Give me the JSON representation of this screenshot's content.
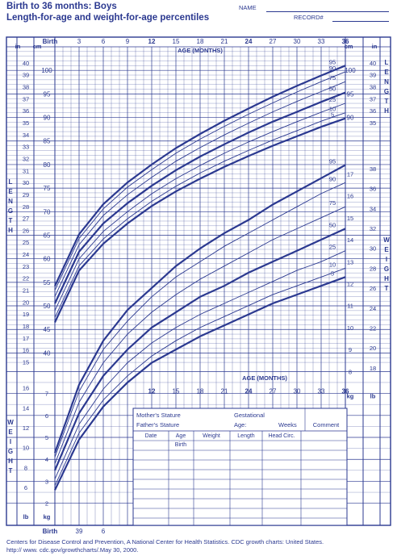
{
  "header": {
    "title_line1": "Birth to 36 months: Boys",
    "title_line2": "Length-for-age and weight-for-age percentiles",
    "name_label": "NAME",
    "record_label": "RECORD#"
  },
  "axes": {
    "top_age_ticks": [
      "Birth",
      "3",
      "6",
      "9",
      "12",
      "15",
      "18",
      "21",
      "24",
      "27",
      "30",
      "33",
      "36"
    ],
    "age_months_label": "AGE (MONTHS)",
    "bottom_age_ticks": [
      "12",
      "15",
      "18",
      "21",
      "24",
      "27",
      "30",
      "33",
      "36"
    ],
    "bottom_left_ticks": [
      "Birth",
      "39",
      "6"
    ],
    "unit_in": "in",
    "unit_cm": "cm",
    "unit_kg": "kg",
    "unit_lb": "lb",
    "side_length_label": "LENGTH",
    "side_weight_label": "WEIGHT"
  },
  "form": {
    "mothers_stature": "Mother's Stature",
    "fathers_stature": "Father's Stature",
    "gestational": "Gestational",
    "age": "Age:",
    "weeks": "Weeks",
    "comment": "Comment",
    "col_date": "Date",
    "col_age": "Age",
    "col_weight": "Weight",
    "col_length": "Length",
    "col_head": "Head",
    "col_circ": "Circ.",
    "birth_row": "Birth"
  },
  "footer": {
    "line1": "Centers for Disease Control and Prevention, A National Center for Health Statistics. CDC growth charts: United States.",
    "line2": "http:// www. cdc.gov/growthcharts/.May 30, 2000."
  },
  "chart_data": [
    {
      "type": "line",
      "title": "Length-for-age",
      "xlabel": "AGE (MONTHS)",
      "ylabel": "LENGTH",
      "xlim": [
        0,
        36
      ],
      "ylim_cm": [
        37.5,
        105
      ],
      "x": [
        0,
        3,
        6,
        9,
        12,
        15,
        18,
        21,
        24,
        27,
        30,
        33,
        36
      ],
      "series": [
        {
          "name": "5",
          "values": [
            46.5,
            57.5,
            63.2,
            67.5,
            71.2,
            74.3,
            77.0,
            79.5,
            81.8,
            84.0,
            86.0,
            88.0,
            89.8
          ]
        },
        {
          "name": "10",
          "values": [
            47.5,
            58.5,
            64.2,
            68.5,
            72.2,
            75.4,
            78.2,
            80.7,
            83.0,
            85.2,
            87.2,
            89.2,
            91.0
          ]
        },
        {
          "name": "25",
          "values": [
            49.0,
            60.0,
            65.8,
            70.0,
            73.8,
            77.0,
            79.8,
            82.4,
            84.8,
            87.0,
            89.1,
            91.1,
            93.0
          ]
        },
        {
          "name": "50",
          "values": [
            50.5,
            61.5,
            67.5,
            71.8,
            75.5,
            78.8,
            81.7,
            84.3,
            86.8,
            89.1,
            91.2,
            93.3,
            95.3
          ]
        },
        {
          "name": "75",
          "values": [
            52.0,
            63.0,
            69.2,
            73.6,
            77.3,
            80.7,
            83.6,
            86.3,
            88.8,
            91.2,
            93.4,
            95.5,
            97.6
          ]
        },
        {
          "name": "90",
          "values": [
            53.3,
            64.3,
            70.6,
            75.2,
            78.9,
            82.4,
            85.4,
            88.1,
            90.7,
            93.1,
            95.4,
            97.6,
            99.7
          ]
        },
        {
          "name": "95",
          "values": [
            54.2,
            65.2,
            71.6,
            76.2,
            80.0,
            83.5,
            86.5,
            89.3,
            91.9,
            94.4,
            96.7,
            98.9,
            101.0
          ]
        }
      ]
    },
    {
      "type": "line",
      "title": "Weight-for-age",
      "xlabel": "AGE (MONTHS)",
      "ylabel": "WEIGHT",
      "xlim": [
        0,
        36
      ],
      "ylim_kg": [
        1.4,
        18.3
      ],
      "x": [
        0,
        3,
        6,
        9,
        12,
        15,
        18,
        21,
        24,
        27,
        30,
        33,
        36
      ],
      "series": [
        {
          "name": "5",
          "values": [
            2.6,
            4.9,
            6.4,
            7.5,
            8.4,
            9.0,
            9.6,
            10.1,
            10.6,
            11.1,
            11.5,
            11.9,
            12.3
          ]
        },
        {
          "name": "10",
          "values": [
            2.8,
            5.2,
            6.7,
            7.8,
            8.7,
            9.4,
            10.0,
            10.5,
            11.0,
            11.5,
            11.9,
            12.3,
            12.7
          ]
        },
        {
          "name": "25",
          "values": [
            3.1,
            5.6,
            7.2,
            8.4,
            9.3,
            10.0,
            10.6,
            11.1,
            11.6,
            12.1,
            12.6,
            13.0,
            13.5
          ]
        },
        {
          "name": "50",
          "values": [
            3.5,
            6.1,
            7.8,
            9.0,
            10.0,
            10.7,
            11.4,
            11.9,
            12.5,
            13.0,
            13.5,
            14.0,
            14.5
          ]
        },
        {
          "name": "75",
          "values": [
            3.8,
            6.6,
            8.4,
            9.7,
            10.7,
            11.5,
            12.2,
            12.8,
            13.4,
            14.0,
            14.5,
            15.0,
            15.5
          ]
        },
        {
          "name": "90",
          "values": [
            4.1,
            7.1,
            9.0,
            10.3,
            11.4,
            12.3,
            13.0,
            13.7,
            14.3,
            14.9,
            15.5,
            16.1,
            16.6
          ]
        },
        {
          "name": "95",
          "values": [
            4.3,
            7.4,
            9.4,
            10.8,
            11.8,
            12.8,
            13.6,
            14.3,
            14.9,
            15.6,
            16.2,
            16.8,
            17.4
          ]
        }
      ]
    }
  ]
}
